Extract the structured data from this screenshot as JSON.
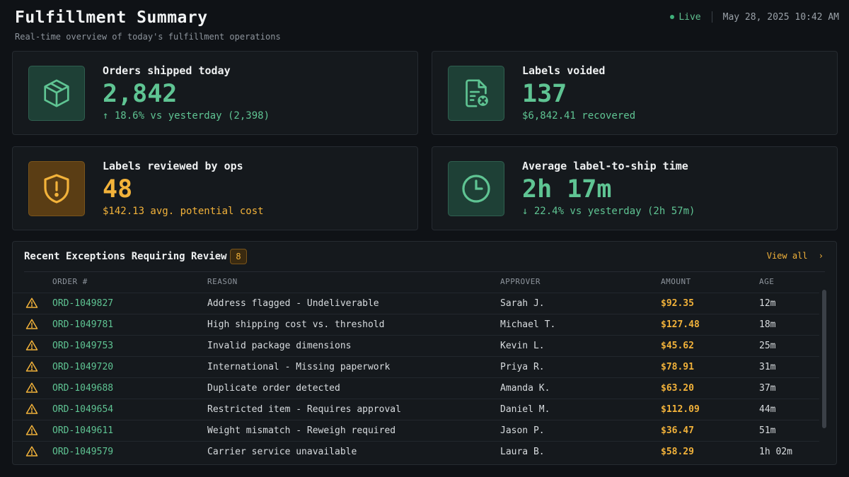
{
  "header": {
    "title": "Fulfillment Summary",
    "subtitle": "Real-time overview of today's fulfillment operations",
    "live_label": "Live",
    "datetime": "May 28, 2025 10:42 AM"
  },
  "cards": [
    {
      "icon": "box-icon",
      "label": "Orders shipped today",
      "value": "2,842",
      "sub": "↑ 18.6% vs yesterday (2,398)",
      "tone": "green"
    },
    {
      "icon": "document-void-icon",
      "label": "Labels voided",
      "value": "137",
      "sub": "$6,842.41 recovered",
      "tone": "green"
    },
    {
      "icon": "shield-alert-icon",
      "label": "Labels reviewed by ops",
      "value": "48",
      "sub": "$142.13 avg. potential cost",
      "tone": "amber"
    },
    {
      "icon": "clock-icon",
      "label": "Average label-to-ship time",
      "value": "2h 17m",
      "sub": "↓ 22.4% vs yesterday (2h 57m)",
      "tone": "green"
    }
  ],
  "exceptions": {
    "title": "Recent Exceptions Requiring Review",
    "count": "8",
    "view_all": "View all",
    "columns": [
      "ORDER #",
      "REASON",
      "APPROVER",
      "AMOUNT",
      "AGE"
    ],
    "rows": [
      {
        "order": "ORD-1049827",
        "reason": "Address flagged - Undeliverable",
        "approver": "Sarah J.",
        "amount": "$92.35",
        "age": "12m"
      },
      {
        "order": "ORD-1049781",
        "reason": "High shipping cost vs. threshold",
        "approver": "Michael T.",
        "amount": "$127.48",
        "age": "18m"
      },
      {
        "order": "ORD-1049753",
        "reason": "Invalid package dimensions",
        "approver": "Kevin L.",
        "amount": "$45.62",
        "age": "25m"
      },
      {
        "order": "ORD-1049720",
        "reason": "International - Missing paperwork",
        "approver": "Priya R.",
        "amount": "$78.91",
        "age": "31m"
      },
      {
        "order": "ORD-1049688",
        "reason": "Duplicate order detected",
        "approver": "Amanda K.",
        "amount": "$63.20",
        "age": "37m"
      },
      {
        "order": "ORD-1049654",
        "reason": "Restricted item - Requires approval",
        "approver": "Daniel M.",
        "amount": "$112.09",
        "age": "44m"
      },
      {
        "order": "ORD-1049611",
        "reason": "Weight mismatch - Reweigh required",
        "approver": "Jason P.",
        "amount": "$36.47",
        "age": "51m"
      },
      {
        "order": "ORD-1049579",
        "reason": "Carrier service unavailable",
        "approver": "Laura B.",
        "amount": "$58.29",
        "age": "1h 02m"
      }
    ]
  },
  "colors": {
    "green": "#5fc493",
    "amber": "#f2b23a",
    "background": "#0f1216"
  }
}
